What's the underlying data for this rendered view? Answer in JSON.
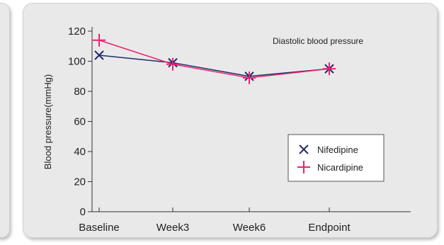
{
  "chart_data": {
    "type": "line",
    "categories": [
      "Baseline",
      "Week3",
      "Week6",
      "Endpoint"
    ],
    "series": [
      {
        "name": "Nifedipine",
        "values": [
          104,
          99,
          90,
          95
        ],
        "color": "#1f2d6b",
        "marker": "x"
      },
      {
        "name": "Nicardipine",
        "values": [
          114,
          98,
          89,
          95
        ],
        "color": "#e8246e",
        "marker": "plus"
      }
    ],
    "annotation": "Diastolic blood pressure",
    "title": "",
    "xlabel": "",
    "ylabel": "Blood pressure(mmHg)",
    "ylim": [
      0,
      120
    ],
    "yticks": [
      0,
      20,
      40,
      60,
      80,
      100,
      120
    ],
    "grid": false,
    "legend_position": "bottom-right"
  }
}
